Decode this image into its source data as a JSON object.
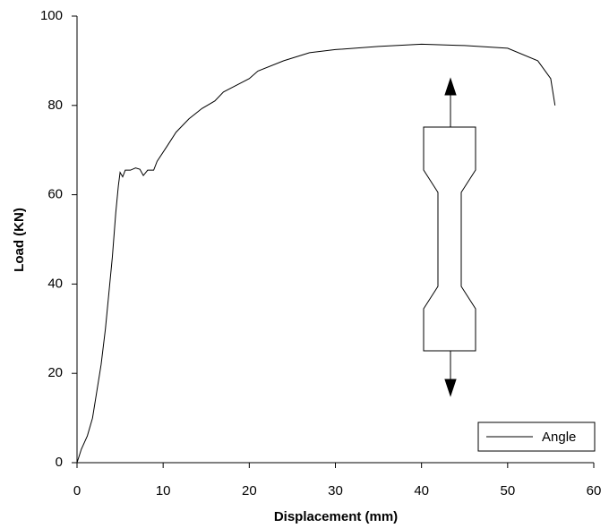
{
  "chart_data": {
    "type": "line",
    "xlabel": "Displacement (mm)",
    "ylabel": "Load (KN)",
    "x": [
      0,
      0.5,
      1.2,
      1.8,
      2.3,
      2.8,
      3.3,
      3.7,
      4.1,
      4.5,
      4.8,
      5.0,
      5.3,
      5.6,
      6.2,
      6.8,
      7.3,
      7.7,
      8.2,
      8.9,
      9.3,
      10.5,
      11.5,
      13,
      14.5,
      16,
      17,
      18.5,
      20,
      21,
      24,
      27,
      30,
      35,
      40,
      45,
      50,
      53.5,
      55,
      55.5
    ],
    "series": [
      {
        "name": "Angle",
        "color": "#000000",
        "values": [
          0,
          3,
          6,
          10,
          16,
          22,
          30,
          38,
          46,
          56,
          62,
          65,
          64,
          65.5,
          65.5,
          66,
          65.7,
          64.3,
          65.5,
          65.5,
          67.5,
          71,
          74,
          77,
          79.3,
          81,
          83,
          84.5,
          86,
          87.7,
          90,
          91.8,
          92.5,
          93.2,
          93.7,
          93.4,
          92.8,
          90,
          86,
          80
        ]
      }
    ],
    "xlim": [
      0,
      60
    ],
    "xticks": [
      0,
      10,
      20,
      30,
      40,
      50,
      60
    ],
    "ylim": [
      0,
      100
    ],
    "yticks": [
      0,
      20,
      40,
      60,
      80,
      100
    ],
    "grid": false,
    "legend": "lower right"
  }
}
